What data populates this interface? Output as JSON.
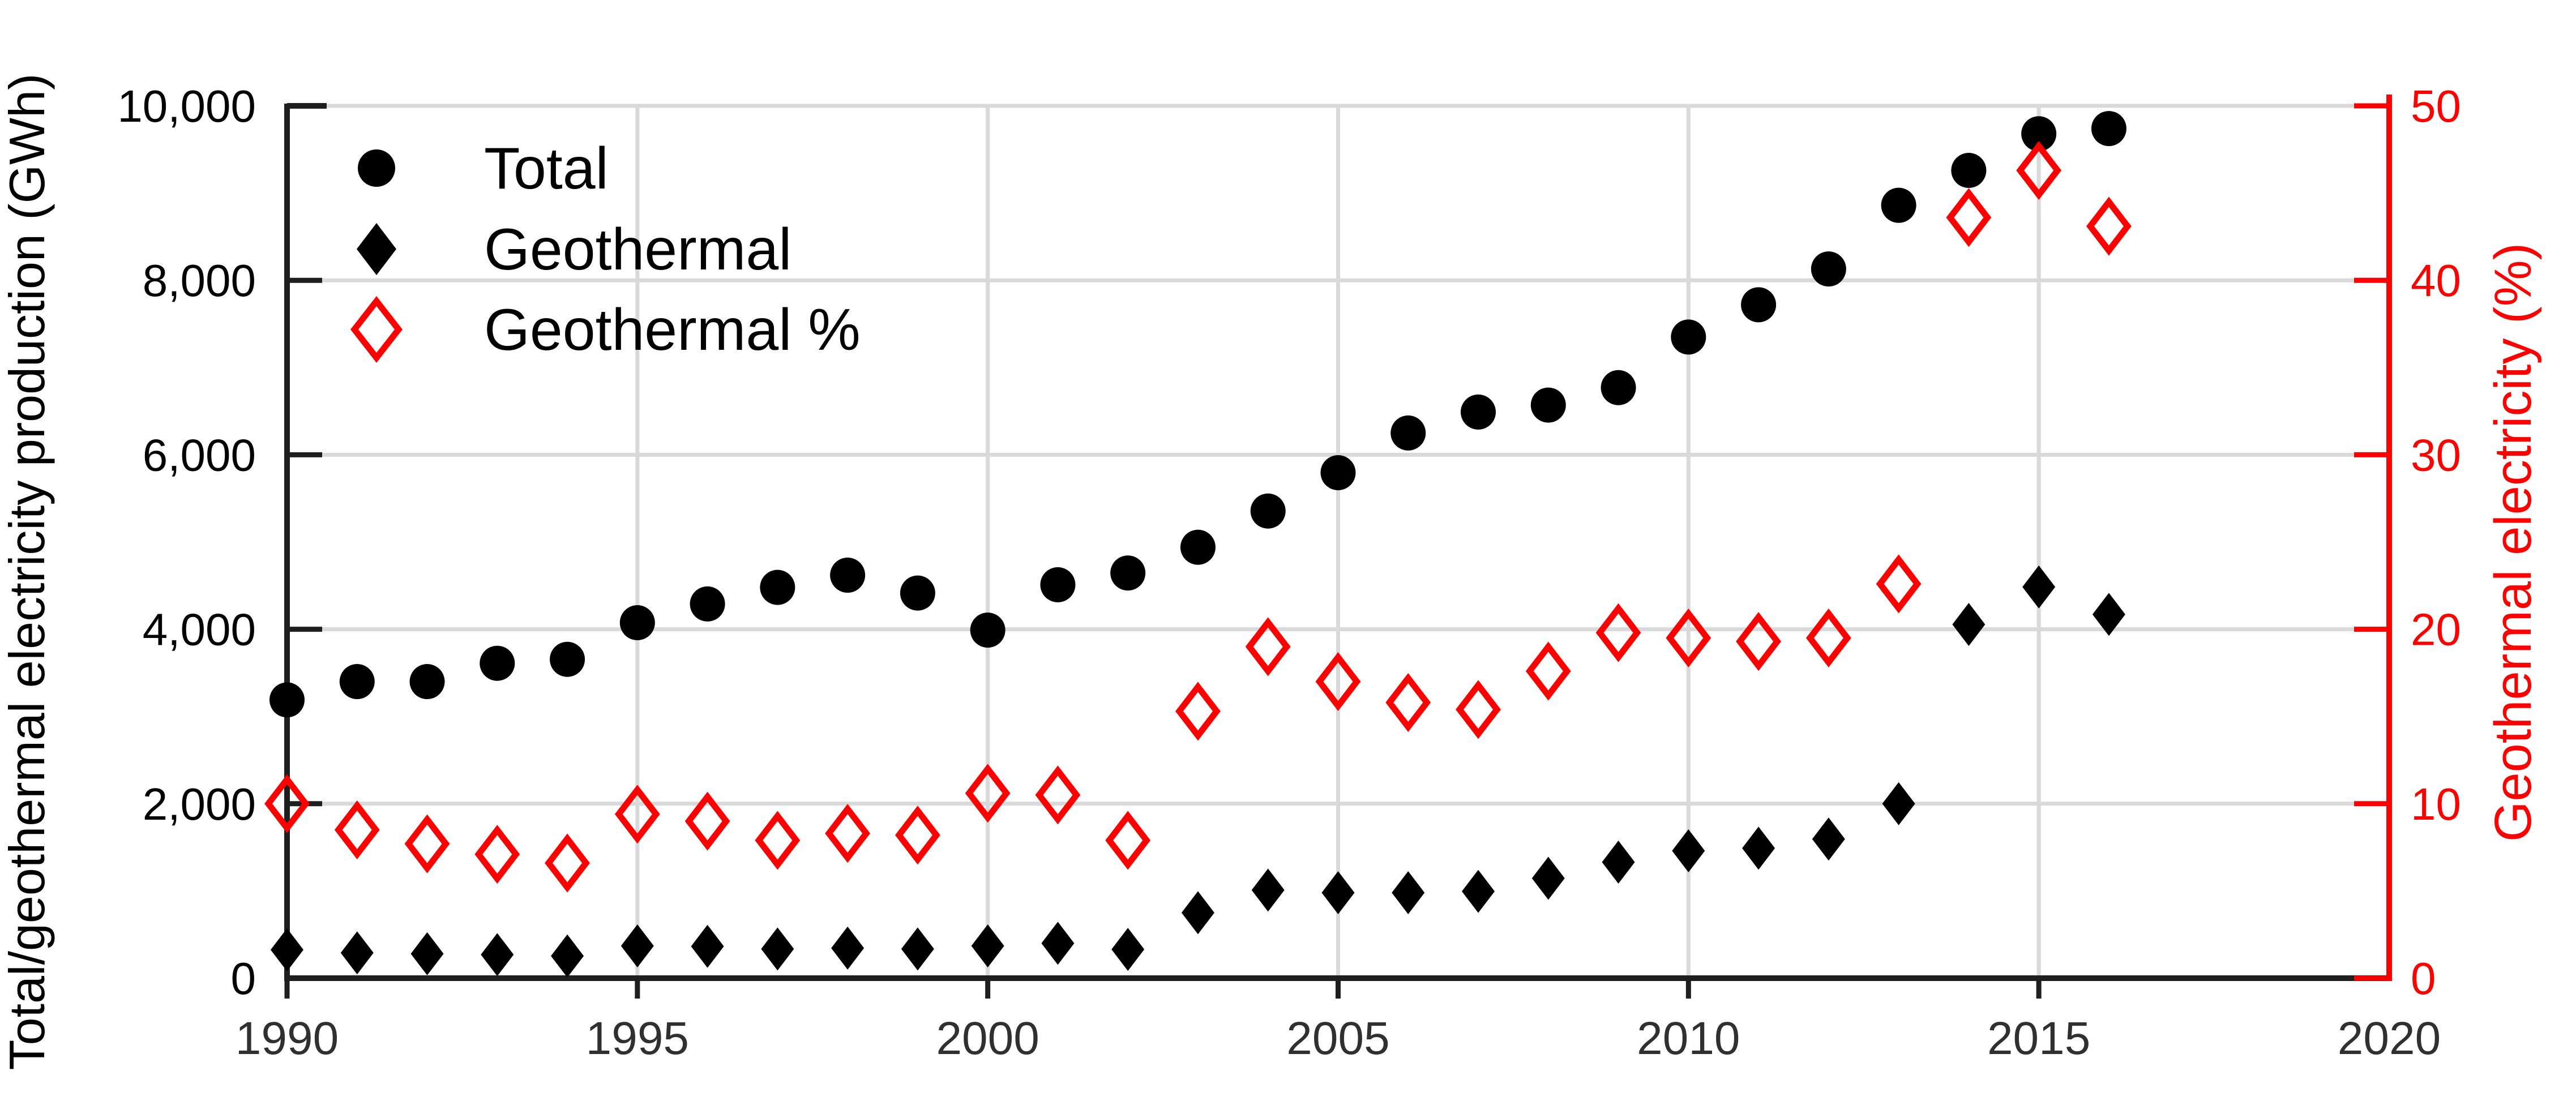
{
  "figure": {
    "background": "#ffffff",
    "left_axis_title": "Total/geothermal electricity production (GWh)",
    "right_axis_title": "Geothermal electricity (%)"
  },
  "legend": {
    "items": [
      {
        "label": "Total",
        "marker": "filled-circle",
        "color": "#000000"
      },
      {
        "label": "Geothermal",
        "marker": "filled-diamond",
        "color": "#000000"
      },
      {
        "label": "Geothermal %",
        "marker": "open-diamond",
        "color": "#ff0000"
      }
    ]
  },
  "axes": {
    "left": {
      "title": "Total/geothermal electricity production (GWh)",
      "tick_values": [
        0,
        2000,
        4000,
        6000,
        8000,
        10000
      ],
      "tick_labels": [
        "0",
        "2,000",
        "4,000",
        "6,000",
        "8,000",
        "10,000"
      ],
      "range": [
        0,
        10000
      ],
      "color": "#000000"
    },
    "right": {
      "title": "Geothermal electricity (%)",
      "tick_values": [
        0,
        10,
        20,
        30,
        40,
        50
      ],
      "tick_labels": [
        "0",
        "10",
        "20",
        "30",
        "40",
        "50"
      ],
      "range": [
        0,
        50
      ],
      "color": "#ff0000"
    },
    "x": {
      "tick_values": [
        1990,
        1995,
        2000,
        2005,
        2010,
        2015,
        2020
      ],
      "tick_labels": [
        "1990",
        "1995",
        "2000",
        "2005",
        "2010",
        "2015",
        "2020"
      ],
      "range": [
        1990,
        2020
      ]
    }
  },
  "colors": {
    "black_series": "#000000",
    "red_series": "#ff0000",
    "gridline": "#d9d9d9",
    "axis_line": "#1f1f1f",
    "x_tick_label": "#303030",
    "left_tick_label": "#000000",
    "right_tick_label": "#ff0000"
  },
  "chart_data": {
    "type": "scatter",
    "title": "",
    "xlabel": "",
    "ylabel_left": "Total/geothermal electricity production (GWh)",
    "ylabel_right": "Geothermal electricity (%)",
    "x": [
      1990,
      1991,
      1992,
      1993,
      1994,
      1995,
      1996,
      1997,
      1998,
      1999,
      2000,
      2001,
      2002,
      2003,
      2004,
      2005,
      2006,
      2007,
      2008,
      2009,
      2010,
      2011,
      2012,
      2013,
      2014,
      2015,
      2016
    ],
    "xlim": [
      1990,
      2020
    ],
    "ylim_left": [
      0,
      10000
    ],
    "ylim_right": [
      0,
      50
    ],
    "grid": true,
    "legend_position": "top-left-inside",
    "series": [
      {
        "name": "Total",
        "axis": "left",
        "marker": "filled-circle",
        "color": "#000000",
        "values": [
          3190,
          3400,
          3400,
          3610,
          3655,
          4075,
          4290,
          4480,
          4620,
          4415,
          3990,
          4510,
          4645,
          4940,
          5355,
          5795,
          6250,
          6490,
          6570,
          6770,
          7350,
          7720,
          8130,
          8860,
          9260,
          9680,
          9740
        ]
      },
      {
        "name": "Geothermal",
        "axis": "left",
        "marker": "filled-diamond",
        "color": "#000000",
        "values": [
          325,
          290,
          280,
          270,
          255,
          370,
          365,
          335,
          345,
          335,
          370,
          400,
          330,
          750,
          1010,
          980,
          980,
          995,
          1145,
          1330,
          1460,
          1490,
          1595,
          2000,
          4055,
          4485,
          4170
        ]
      },
      {
        "name": "Geothermal %",
        "axis": "right",
        "marker": "open-diamond",
        "color": "#ff0000",
        "values": [
          10.0,
          8.5,
          7.7,
          7.1,
          6.6,
          9.4,
          9.0,
          7.9,
          8.3,
          8.2,
          10.6,
          10.5,
          7.9,
          15.3,
          19.0,
          17.0,
          15.8,
          15.4,
          17.6,
          19.8,
          19.5,
          19.3,
          19.5,
          22.6,
          43.6,
          46.3,
          43.1
        ]
      }
    ]
  }
}
